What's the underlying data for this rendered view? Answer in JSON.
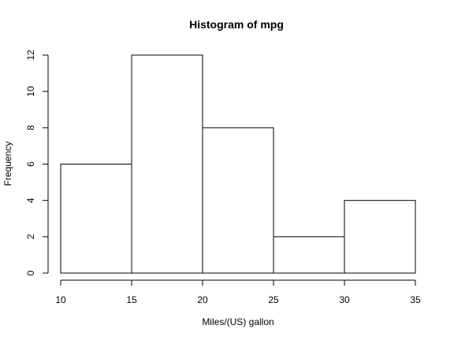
{
  "chart_data": {
    "type": "bar",
    "title": "Histogram of mpg",
    "xlabel": "Miles/(US) gallon",
    "ylabel": "Frequency",
    "bins": [
      [
        10,
        15
      ],
      [
        15,
        20
      ],
      [
        20,
        25
      ],
      [
        25,
        30
      ],
      [
        30,
        35
      ]
    ],
    "values": [
      6,
      12,
      8,
      2,
      4
    ],
    "xticks": [
      10,
      15,
      20,
      25,
      30,
      35
    ],
    "yticks": [
      0,
      2,
      4,
      6,
      8,
      10,
      12
    ],
    "xlim": [
      10,
      35
    ],
    "ylim": [
      0,
      12
    ],
    "grid": false,
    "colors": {
      "fill": "#ffffff",
      "stroke": "#000000"
    }
  }
}
